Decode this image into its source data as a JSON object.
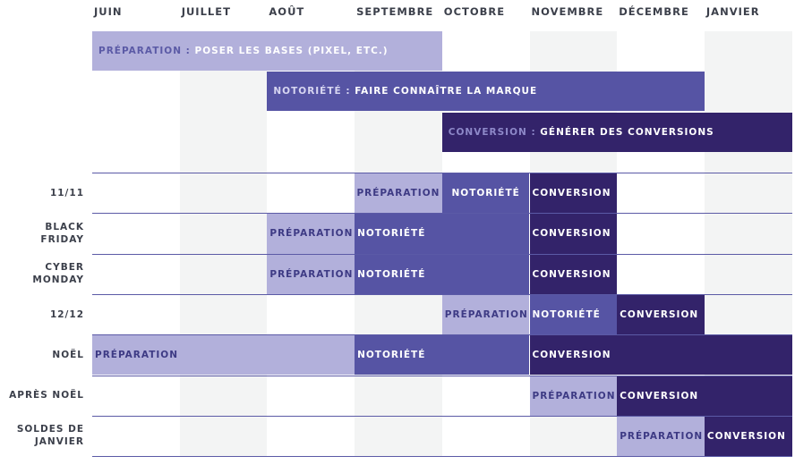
{
  "months": [
    "JUIN",
    "JUILLET",
    "AOÛT",
    "SEPTEMBRE",
    "OCTOBRE",
    "NOVEMBRE",
    "DÉCEMBRE",
    "JANVIER"
  ],
  "phases": {
    "preparation": "PRÉPARATION",
    "notoriete": "NOTORIÉTÉ",
    "conversion": "CONVERSION"
  },
  "colors": {
    "preparation": "#b2b0db",
    "notoriete": "#5654a4",
    "conversion": "#33236a",
    "stripe": "#f3f4f4",
    "divider": "#5b5aa6",
    "text": "#3b3f4a"
  },
  "overview": [
    {
      "phase": "preparation",
      "lead": "PRÉPARATION :",
      "text": "POSER LES BASES (PIXEL, ETC.)",
      "start": 0,
      "end": 4
    },
    {
      "phase": "notoriete",
      "lead": "NOTORIÉTÉ :",
      "text": "FAIRE CONNAÎTRE LA MARQUE",
      "start": 2,
      "end": 7
    },
    {
      "phase": "conversion",
      "lead": "CONVERSION :",
      "text": "GÉNÉRER DES CONVERSIONS",
      "start": 4,
      "end": 8
    }
  ],
  "events": [
    {
      "label": [
        "11/11"
      ],
      "segments": [
        {
          "phase": "preparation",
          "start": 3,
          "end": 4,
          "align": "center"
        },
        {
          "phase": "notoriete",
          "start": 4,
          "end": 5,
          "align": "center"
        },
        {
          "phase": "conversion",
          "start": 5,
          "end": 6,
          "align": "left"
        }
      ]
    },
    {
      "label": [
        "BLACK",
        "FRIDAY"
      ],
      "segments": [
        {
          "phase": "preparation",
          "start": 2,
          "end": 3,
          "align": "left"
        },
        {
          "phase": "notoriete",
          "start": 3,
          "end": 5,
          "align": "left"
        },
        {
          "phase": "conversion",
          "start": 5,
          "end": 6,
          "align": "left"
        }
      ]
    },
    {
      "label": [
        "CYBER",
        "MONDAY"
      ],
      "segments": [
        {
          "phase": "preparation",
          "start": 2,
          "end": 3,
          "align": "left"
        },
        {
          "phase": "notoriete",
          "start": 3,
          "end": 5,
          "align": "left"
        },
        {
          "phase": "conversion",
          "start": 5,
          "end": 6,
          "align": "left"
        }
      ]
    },
    {
      "label": [
        "12/12"
      ],
      "segments": [
        {
          "phase": "preparation",
          "start": 4,
          "end": 5,
          "align": "left"
        },
        {
          "phase": "notoriete",
          "start": 5,
          "end": 6,
          "align": "left"
        },
        {
          "phase": "conversion",
          "start": 6,
          "end": 7,
          "align": "left"
        }
      ]
    },
    {
      "label": [
        "NOËL"
      ],
      "segments": [
        {
          "phase": "preparation",
          "start": 0,
          "end": 3,
          "align": "left"
        },
        {
          "phase": "notoriete",
          "start": 3,
          "end": 5,
          "align": "left"
        },
        {
          "phase": "conversion",
          "start": 5,
          "end": 8,
          "align": "left"
        }
      ]
    },
    {
      "label": [
        "APRÈS NOËL"
      ],
      "segments": [
        {
          "phase": "preparation",
          "start": 5,
          "end": 6,
          "align": "left"
        },
        {
          "phase": "conversion",
          "start": 6,
          "end": 8,
          "align": "left"
        }
      ]
    },
    {
      "label": [
        "SOLDES DE",
        "JANVIER"
      ],
      "segments": [
        {
          "phase": "preparation",
          "start": 6,
          "end": 7,
          "align": "left"
        },
        {
          "phase": "conversion",
          "start": 7,
          "end": 8,
          "align": "left"
        }
      ]
    }
  ]
}
